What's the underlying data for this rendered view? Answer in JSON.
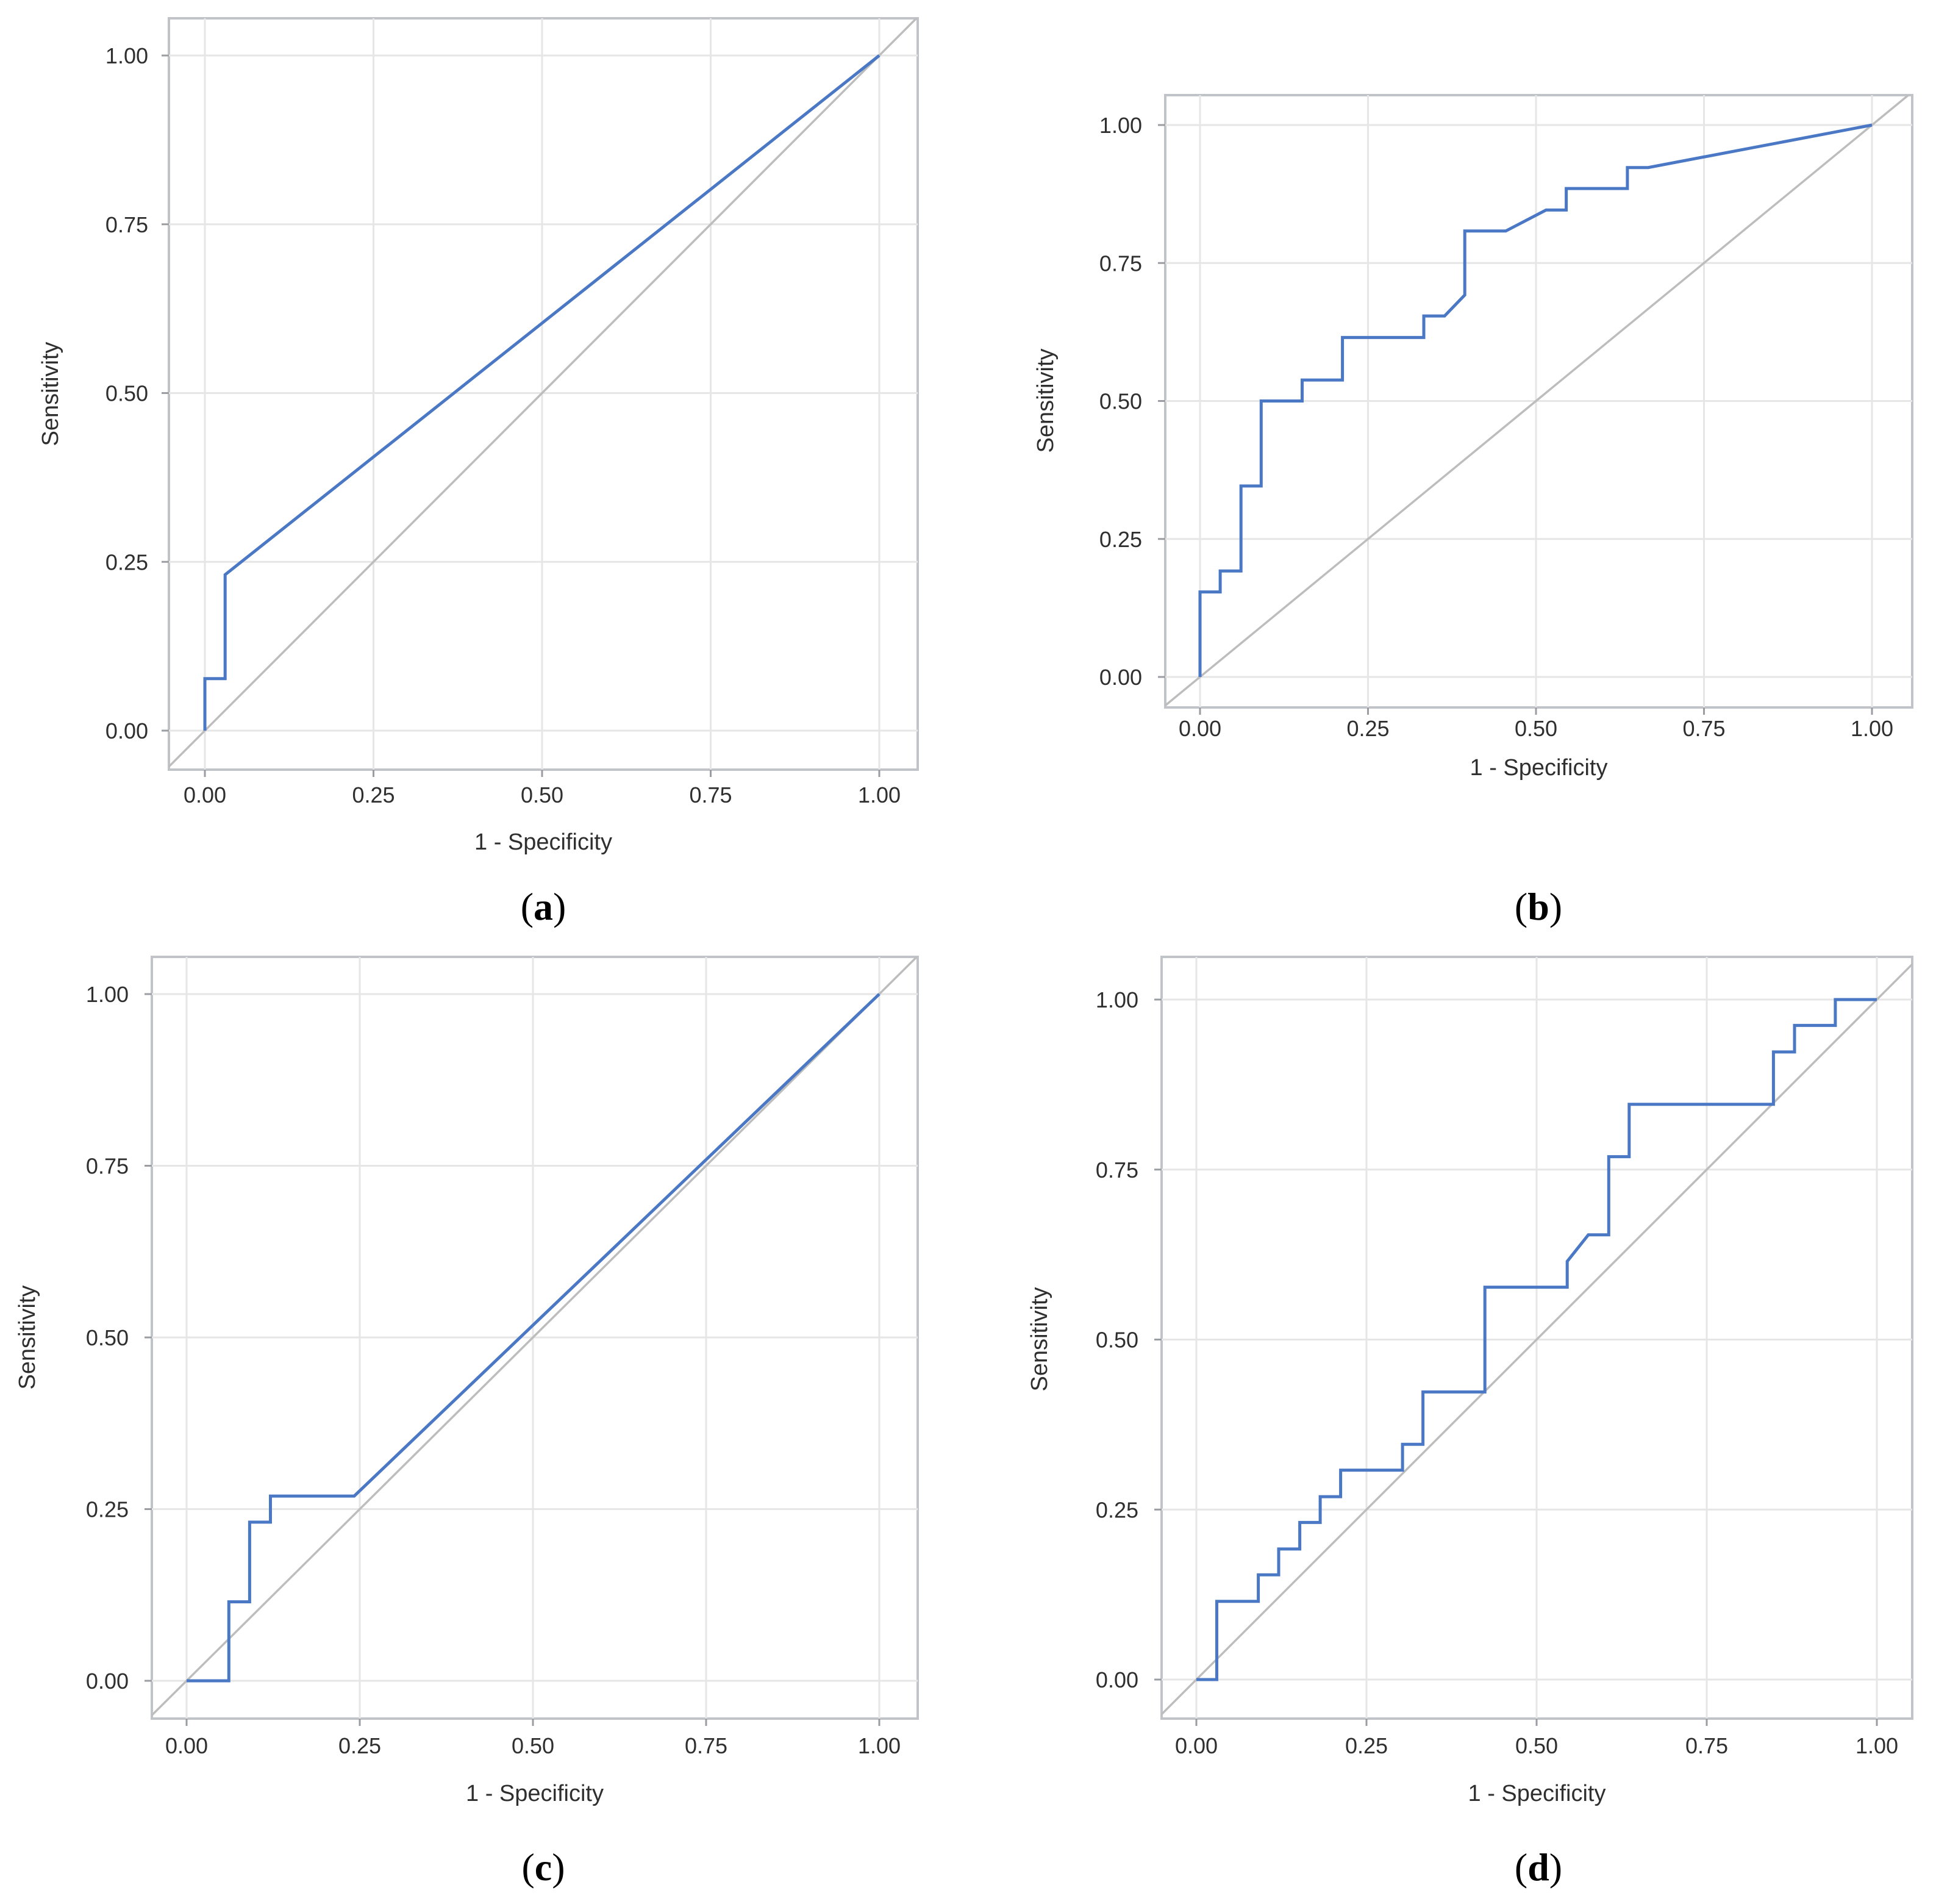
{
  "chart_data": [
    {
      "type": "line",
      "panel_label": "a",
      "xlabel": "1 - Specificity",
      "ylabel": "Sensitivity",
      "xlim": [
        0,
        1
      ],
      "ylim": [
        0,
        1
      ],
      "xticks": [
        "0.00",
        "0.25",
        "0.50",
        "0.75",
        "1.00"
      ],
      "yticks": [
        "0.00",
        "0.25",
        "0.50",
        "0.75",
        "1.00"
      ],
      "grid": true,
      "reference_line": [
        [
          0,
          0
        ],
        [
          1,
          1
        ]
      ],
      "series": [
        {
          "x": [
            0,
            0,
            0.03,
            0.03,
            1.0
          ],
          "y": [
            0,
            0.077,
            0.077,
            0.231,
            1.0
          ]
        }
      ]
    },
    {
      "type": "line",
      "panel_label": "b",
      "xlabel": "1 - Specificity",
      "ylabel": "Sensitivity",
      "xlim": [
        0,
        1
      ],
      "ylim": [
        0,
        1
      ],
      "xticks": [
        "0.00",
        "0.25",
        "0.50",
        "0.75",
        "1.00"
      ],
      "yticks": [
        "0.00",
        "0.25",
        "0.50",
        "0.75",
        "1.00"
      ],
      "grid": true,
      "reference_line": [
        [
          0,
          0
        ],
        [
          1,
          1
        ]
      ],
      "series": [
        {
          "x": [
            0,
            0,
            0.03,
            0.03,
            0.061,
            0.061,
            0.091,
            0.091,
            0.152,
            0.152,
            0.212,
            0.212,
            0.333,
            0.333,
            0.364,
            0.394,
            0.394,
            0.455,
            0.515,
            0.545,
            0.545,
            0.636,
            0.636,
            0.667,
            1.0
          ],
          "y": [
            0,
            0.154,
            0.154,
            0.192,
            0.192,
            0.346,
            0.346,
            0.5,
            0.5,
            0.538,
            0.538,
            0.615,
            0.615,
            0.654,
            0.654,
            0.692,
            0.808,
            0.808,
            0.846,
            0.846,
            0.885,
            0.885,
            0.923,
            0.923,
            1.0
          ]
        }
      ]
    },
    {
      "type": "line",
      "panel_label": "c",
      "xlabel": "1 - Specificity",
      "ylabel": "Sensitivity",
      "xlim": [
        0,
        1
      ],
      "ylim": [
        0,
        1
      ],
      "xticks": [
        "0.00",
        "0.25",
        "0.50",
        "0.75",
        "1.00"
      ],
      "yticks": [
        "0.00",
        "0.25",
        "0.50",
        "0.75",
        "1.00"
      ],
      "grid": true,
      "reference_line": [
        [
          0,
          0
        ],
        [
          1,
          1
        ]
      ],
      "series": [
        {
          "x": [
            0,
            0.061,
            0.061,
            0.091,
            0.091,
            0.121,
            0.121,
            0.242,
            1.0
          ],
          "y": [
            0,
            0,
            0.115,
            0.115,
            0.231,
            0.231,
            0.269,
            0.269,
            1.0
          ]
        }
      ]
    },
    {
      "type": "line",
      "panel_label": "d",
      "xlabel": "1 - Specificity",
      "ylabel": "Sensitivity",
      "xlim": [
        0,
        1
      ],
      "ylim": [
        0,
        1
      ],
      "xticks": [
        "0.00",
        "0.25",
        "0.50",
        "0.75",
        "1.00"
      ],
      "yticks": [
        "0.00",
        "0.25",
        "0.50",
        "0.75",
        "1.00"
      ],
      "grid": true,
      "reference_line": [
        [
          0,
          0
        ],
        [
          1,
          1
        ]
      ],
      "series": [
        {
          "x": [
            0,
            0.03,
            0.03,
            0.091,
            0.091,
            0.121,
            0.121,
            0.152,
            0.152,
            0.182,
            0.182,
            0.212,
            0.212,
            0.303,
            0.303,
            0.333,
            0.333,
            0.424,
            0.424,
            0.545,
            0.545,
            0.576,
            0.606,
            0.606,
            0.636,
            0.636,
            0.848,
            0.848,
            0.879,
            0.879,
            0.939,
            0.939,
            1.0
          ],
          "y": [
            0,
            0,
            0.115,
            0.115,
            0.154,
            0.154,
            0.192,
            0.192,
            0.231,
            0.231,
            0.269,
            0.269,
            0.308,
            0.308,
            0.346,
            0.346,
            0.423,
            0.423,
            0.577,
            0.577,
            0.615,
            0.654,
            0.654,
            0.769,
            0.769,
            0.846,
            0.846,
            0.923,
            0.923,
            0.962,
            0.962,
            1.0,
            1.0
          ]
        }
      ]
    }
  ],
  "colors": {
    "roc_line": "#4a78c4",
    "reference_line": "#bdbdbd",
    "grid": "#e6e6e6",
    "frame": "#c0c4c8"
  }
}
